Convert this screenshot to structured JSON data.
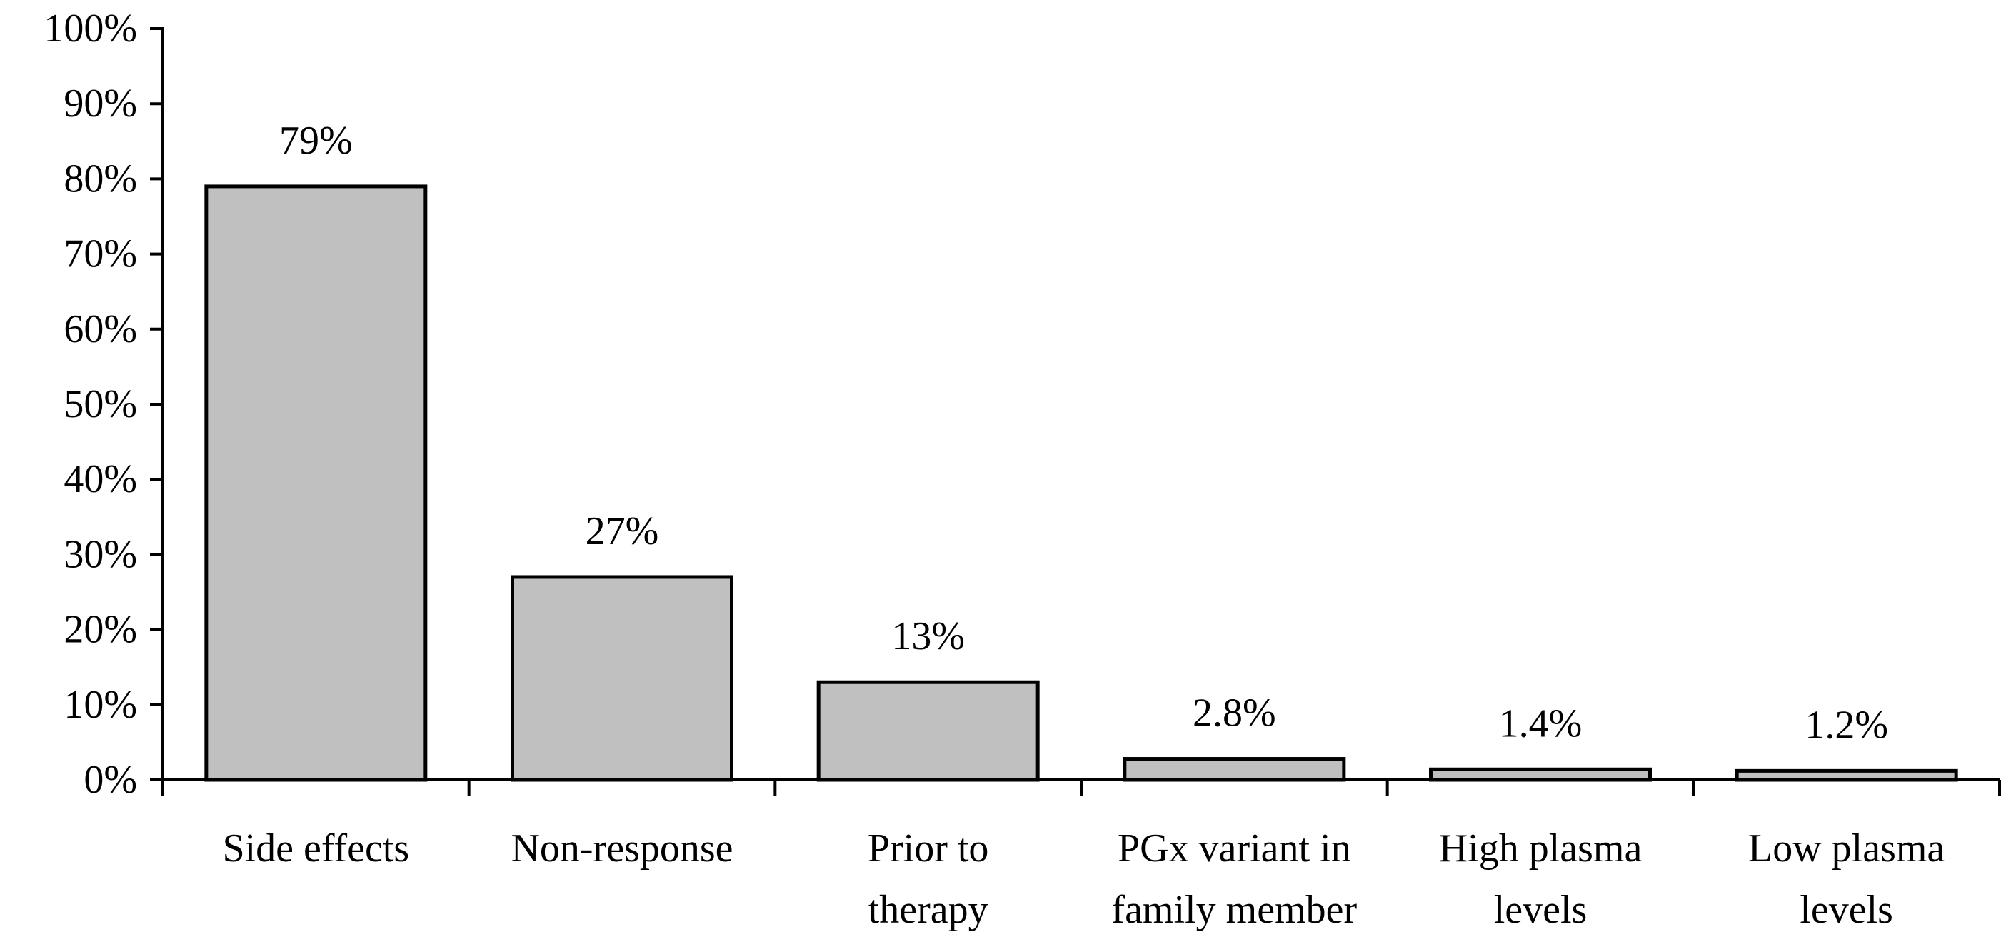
{
  "chart_data": {
    "type": "bar",
    "title": "",
    "xlabel": "",
    "ylabel": "",
    "categories": [
      [
        "Side effects"
      ],
      [
        "Non-response"
      ],
      [
        "Prior to",
        "therapy"
      ],
      [
        "PGx variant in",
        "family member"
      ],
      [
        "High plasma",
        "levels"
      ],
      [
        "Low plasma",
        "levels"
      ]
    ],
    "values": [
      79,
      27,
      13,
      2.8,
      1.4,
      1.2
    ],
    "data_labels": [
      "79%",
      "27%",
      "13%",
      "2.8%",
      "1.4%",
      "1.2%"
    ],
    "ylim": [
      0,
      100
    ],
    "yticks": [
      0,
      10,
      20,
      30,
      40,
      50,
      60,
      70,
      80,
      90,
      100
    ],
    "ytick_labels": [
      "0%",
      "10%",
      "20%",
      "30%",
      "40%",
      "50%",
      "60%",
      "70%",
      "80%",
      "90%",
      "100%"
    ],
    "grid": false,
    "legend": "none",
    "colors": {
      "bar_fill": "#c0c0c0",
      "bar_stroke": "#000000",
      "axis": "#000000",
      "text": "#000000"
    }
  }
}
